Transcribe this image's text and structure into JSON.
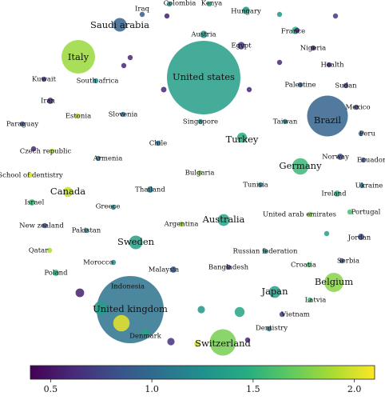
{
  "chart_data": {
    "type": "scatter",
    "description_kind": "bubble",
    "color_scale": {
      "colormap": "viridis",
      "range": [
        0.4,
        2.1
      ],
      "ticks": [
        0.5,
        1.0,
        1.5,
        2.0
      ],
      "tick_labels": [
        "0.5",
        "1.0",
        "1.5",
        "2.0"
      ]
    },
    "points": [
      {
        "label": "Iraq",
        "size": 1,
        "color": 0.9
      },
      {
        "label": "Colombia",
        "size": 1,
        "color": 1.2
      },
      {
        "label": "Kenya",
        "size": 1,
        "color": 1.5
      },
      {
        "label": "Hungary",
        "size": 2,
        "color": 1.4
      },
      {
        "label": "Saudi arabia",
        "size": 4,
        "color": 0.95
      },
      {
        "label": "Austria",
        "size": 2,
        "color": 1.3
      },
      {
        "label": "Egypt",
        "size": 2,
        "color": 0.7
      },
      {
        "label": "France",
        "size": 2,
        "color": 1.5
      },
      {
        "label": "Italy",
        "size": 6,
        "color": 1.85
      },
      {
        "label": "United states",
        "size": 10,
        "color": 1.35
      },
      {
        "label": "Nigeria",
        "size": 1,
        "color": 0.6
      },
      {
        "label": "Health",
        "size": 1,
        "color": 0.6
      },
      {
        "label": "Kuwait",
        "size": 1,
        "color": 0.7
      },
      {
        "label": "South africa",
        "size": 1,
        "color": 1.2
      },
      {
        "label": "Palestine",
        "size": 1,
        "color": 0.9
      },
      {
        "label": "Sudan",
        "size": 1,
        "color": 0.7
      },
      {
        "label": "Iran",
        "size": 1.5,
        "color": 0.6
      },
      {
        "label": "Estonia",
        "size": 1,
        "color": 1.9
      },
      {
        "label": "Slovenia",
        "size": 1,
        "color": 1.0
      },
      {
        "label": "Mexico",
        "size": 1,
        "color": 0.7
      },
      {
        "label": "Brazil",
        "size": 7,
        "color": 0.95
      },
      {
        "label": "Paraguay",
        "size": 1,
        "color": 0.8
      },
      {
        "label": "Singapore",
        "size": 1,
        "color": 1.3
      },
      {
        "label": "Taiwan",
        "size": 1,
        "color": 1.2
      },
      {
        "label": "Peru",
        "size": 1,
        "color": 0.9
      },
      {
        "label": "Czech republic",
        "size": 1,
        "color": 1.9
      },
      {
        "label": "Chile",
        "size": 1,
        "color": 1.0
      },
      {
        "label": "Turkey",
        "size": 3,
        "color": 1.45
      },
      {
        "label": "Norway",
        "size": 1.5,
        "color": 0.8
      },
      {
        "label": "Ecuador",
        "size": 1,
        "color": 0.8
      },
      {
        "label": "Armenia",
        "size": 1,
        "color": 1.0
      },
      {
        "label": "Germany",
        "size": 4.5,
        "color": 1.55
      },
      {
        "label": "School of dentistry",
        "size": 1,
        "color": 2.0
      },
      {
        "label": "Bulgaria",
        "size": 1,
        "color": 1.8
      },
      {
        "label": "Tunisia",
        "size": 1,
        "color": 1.1
      },
      {
        "label": "Canada",
        "size": 3,
        "color": 1.95
      },
      {
        "label": "Thailand",
        "size": 1.5,
        "color": 1.1
      },
      {
        "label": "Ireland",
        "size": 1.5,
        "color": 1.5
      },
      {
        "label": "Ukraine",
        "size": 1,
        "color": 1.1
      },
      {
        "label": "Israel",
        "size": 1.5,
        "color": 1.55
      },
      {
        "label": "Greece",
        "size": 1,
        "color": 1.15
      },
      {
        "label": "Australia",
        "size": 3.5,
        "color": 1.4
      },
      {
        "label": "United arab emirates",
        "size": 1,
        "color": 1.8
      },
      {
        "label": "Portugal",
        "size": 1,
        "color": 1.6
      },
      {
        "label": "New zealand",
        "size": 1,
        "color": 0.8
      },
      {
        "label": "Argentina",
        "size": 1,
        "color": 1.85
      },
      {
        "label": "Pakistan",
        "size": 1,
        "color": 1.2
      },
      {
        "label": "Sweden",
        "size": 4,
        "color": 1.35
      },
      {
        "label": "Jordan",
        "size": 1.5,
        "color": 0.8
      },
      {
        "label": "Russian federation",
        "size": 1,
        "color": 1.25
      },
      {
        "label": "Qatar",
        "size": 1,
        "color": 1.9
      },
      {
        "label": "Morocco",
        "size": 1,
        "color": 1.25
      },
      {
        "label": "Serbia",
        "size": 1,
        "color": 0.8
      },
      {
        "label": "Malaysia",
        "size": 1.5,
        "color": 0.85
      },
      {
        "label": "Bangladesh",
        "size": 1,
        "color": 0.75
      },
      {
        "label": "Croatia",
        "size": 1,
        "color": 1.6
      },
      {
        "label": "Poland",
        "size": 1.5,
        "color": 1.5
      },
      {
        "label": "Belgium",
        "size": 5,
        "color": 1.8
      },
      {
        "label": "Indonesia",
        "size": 1,
        "color": 1.2
      },
      {
        "label": "Japan",
        "size": 3.5,
        "color": 1.35
      },
      {
        "label": "Latvia",
        "size": 1,
        "color": 1.55
      },
      {
        "label": "United kingdom",
        "size": 9.5,
        "color": 1.05
      },
      {
        "label": "Vietnam",
        "size": 1,
        "color": 0.75
      },
      {
        "label": "Denmark",
        "size": 2,
        "color": 1.4
      },
      {
        "label": "Dentistry",
        "size": 1,
        "color": 1.1
      },
      {
        "label": "Switzerland",
        "size": 5.5,
        "color": 1.75
      },
      {
        "label": "",
        "size": 1,
        "color": 1.4
      },
      {
        "label": "",
        "size": 1,
        "color": 1.3
      },
      {
        "label": "",
        "size": 1.2,
        "color": 0.6
      },
      {
        "label": "",
        "size": 1,
        "color": 0.7
      },
      {
        "label": "",
        "size": 1,
        "color": 0.6
      },
      {
        "label": "",
        "size": 1,
        "color": 0.6
      },
      {
        "label": "",
        "size": 1,
        "color": 0.6
      },
      {
        "label": "",
        "size": 1,
        "color": 0.55
      },
      {
        "label": "",
        "size": 1,
        "color": 0.6
      },
      {
        "label": "",
        "size": 2.5,
        "color": 0.55
      },
      {
        "label": "",
        "size": 1,
        "color": 0.6
      },
      {
        "label": "",
        "size": 1,
        "color": 0.6
      },
      {
        "label": "",
        "size": 1,
        "color": 1.35
      },
      {
        "label": "",
        "size": 2,
        "color": 1.3
      },
      {
        "label": "",
        "size": 4,
        "color": 1.35
      },
      {
        "label": "",
        "size": 4.5,
        "color": 2.05
      },
      {
        "label": "",
        "size": 3,
        "color": 1.4
      },
      {
        "label": "",
        "size": 1.5,
        "color": 2.0
      },
      {
        "label": "",
        "size": 2,
        "color": 0.65
      },
      {
        "label": "",
        "size": 1,
        "color": 0.6
      }
    ]
  }
}
